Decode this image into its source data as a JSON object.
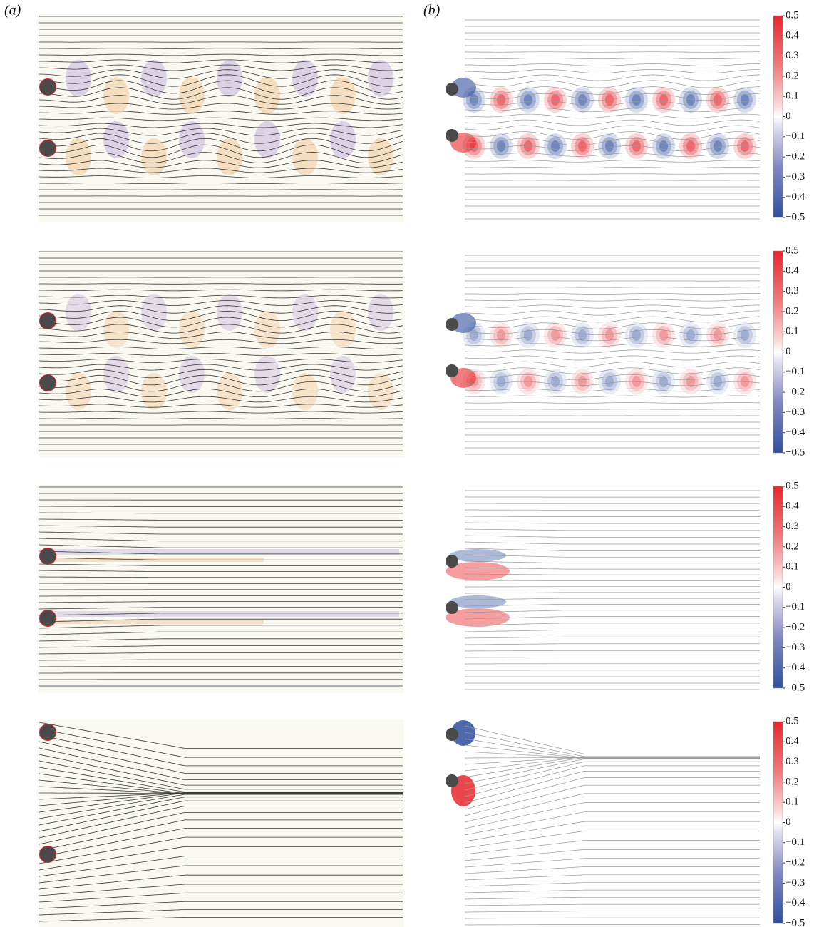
{
  "panel_labels": {
    "a": "(a)",
    "b": "(b)"
  },
  "colorbar": {
    "range": [
      -0.5,
      0.5
    ],
    "ticks": [
      0.5,
      0.4,
      0.3,
      0.2,
      0.1,
      0,
      {
        "value": -0.1,
        "label": "−0.1"
      },
      {
        "value": -0.2,
        "label": "−0.2"
      },
      {
        "value": -0.3,
        "label": "−0.3"
      },
      {
        "value": -0.4,
        "label": "−0.4"
      },
      {
        "value": -0.5,
        "label": "−0.5"
      }
    ]
  }
}
